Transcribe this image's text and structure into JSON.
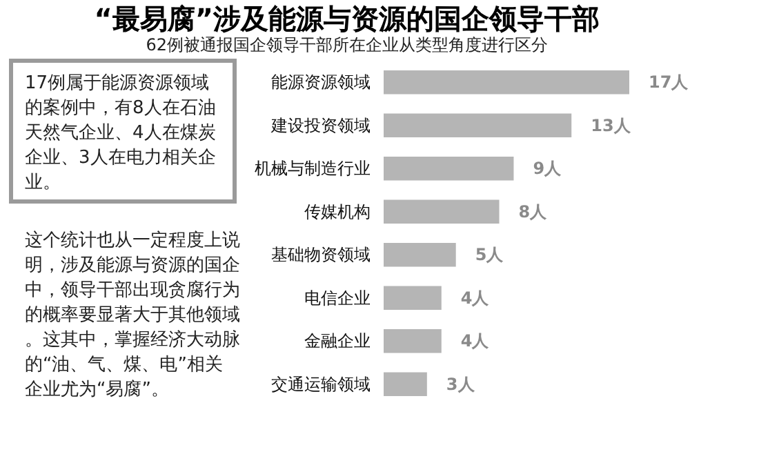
{
  "chart_data": {
    "type": "bar",
    "orientation": "horizontal",
    "title": "“最易腐”涉及能源与资源的国企领导干部",
    "subtitle": "62例被通报国企领导干部所在企业从类型角度进行区分",
    "categories": [
      "能源资源领域",
      "建设投资领域",
      "机械与制造行业",
      "传媒机构",
      "基础物资领域",
      "电信企业",
      "金融企业",
      "交通运输领域"
    ],
    "values": [
      17,
      13,
      9,
      8,
      5,
      4,
      4,
      3
    ],
    "value_labels": [
      "17人",
      "13人",
      "9人",
      "8人",
      "5人",
      "4人",
      "4人",
      "3人"
    ],
    "color": "#b5b5b5",
    "annotations": [
      "17例属于能源资源领域的案例中，有8人在石油天然气企业、4人在煤炭企业、3人在电力相关企业。",
      "这个统计也从一定程度上说明，涉及能源与资源的国企中，领导干部出现贪腐行为的概率要显著大于其他领域。这其中，掌握经济大动脉的“油、气、煤、电”相关企业尤为“易腐”。"
    ],
    "grid": false
  }
}
